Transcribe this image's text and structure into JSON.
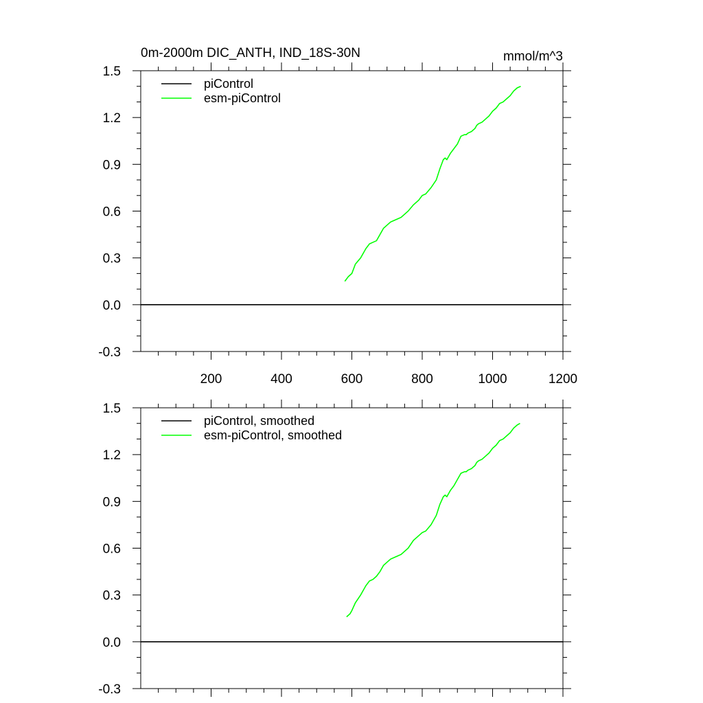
{
  "figure": {
    "title_left": "0m-2000m DIC_ANTH, IND_18S-30N",
    "title_right": "mmol/m^3"
  },
  "chart_data": [
    {
      "type": "line",
      "xlim": [
        0,
        1200
      ],
      "ylim": [
        -0.3,
        1.5
      ],
      "x_ticks": [
        200,
        400,
        600,
        800,
        1000,
        1200
      ],
      "x_tick_labels": [
        "200",
        "400",
        "600",
        "800",
        "1000",
        "1200"
      ],
      "y_ticks": [
        -0.3,
        0.0,
        0.3,
        0.6,
        0.9,
        1.2,
        1.5
      ],
      "y_tick_labels": [
        "-0.3",
        "0.0",
        "0.3",
        "0.6",
        "0.9",
        "1.2",
        "1.5"
      ],
      "legend_position": "top-left",
      "grid": false,
      "series": [
        {
          "name": "piControl",
          "color": "#000000",
          "x": [
            0,
            1200
          ],
          "y": [
            0.0,
            0.0
          ]
        },
        {
          "name": "esm-piControl",
          "color": "#00ff00",
          "x": [
            580,
            590,
            600,
            610,
            625,
            640,
            650,
            660,
            670,
            680,
            690,
            700,
            710,
            720,
            730,
            740,
            760,
            775,
            790,
            800,
            810,
            825,
            840,
            850,
            860,
            865,
            870,
            880,
            890,
            900,
            910,
            920,
            925,
            930,
            940,
            950,
            955,
            960,
            970,
            980,
            990,
            1000,
            1010,
            1020,
            1030,
            1040,
            1050,
            1060,
            1070,
            1080
          ],
          "y": [
            0.15,
            0.18,
            0.2,
            0.26,
            0.3,
            0.36,
            0.39,
            0.4,
            0.41,
            0.45,
            0.49,
            0.51,
            0.53,
            0.54,
            0.55,
            0.56,
            0.6,
            0.64,
            0.67,
            0.7,
            0.71,
            0.75,
            0.8,
            0.87,
            0.93,
            0.94,
            0.93,
            0.97,
            1.0,
            1.03,
            1.08,
            1.09,
            1.09,
            1.1,
            1.11,
            1.13,
            1.15,
            1.16,
            1.17,
            1.19,
            1.21,
            1.24,
            1.26,
            1.29,
            1.3,
            1.32,
            1.34,
            1.37,
            1.39,
            1.4
          ]
        }
      ]
    },
    {
      "type": "line",
      "xlim": [
        0,
        1200
      ],
      "ylim": [
        -0.3,
        1.5
      ],
      "x_ticks": [
        200,
        400,
        600,
        800,
        1000,
        1200
      ],
      "y_ticks": [
        -0.3,
        0.0,
        0.3,
        0.6,
        0.9,
        1.2,
        1.5
      ],
      "y_tick_labels": [
        "-0.3",
        "0.0",
        "0.3",
        "0.6",
        "0.9",
        "1.2",
        "1.5"
      ],
      "legend_position": "top-left",
      "grid": false,
      "series": [
        {
          "name": "piControl, smoothed",
          "color": "#000000",
          "x": [
            0,
            1200
          ],
          "y": [
            0.0,
            0.0
          ]
        },
        {
          "name": "esm-piControl, smoothed",
          "color": "#00ff00",
          "x": [
            585,
            595,
            600,
            610,
            625,
            640,
            650,
            660,
            670,
            680,
            690,
            700,
            710,
            720,
            730,
            740,
            760,
            775,
            790,
            800,
            810,
            825,
            840,
            850,
            860,
            865,
            870,
            880,
            890,
            900,
            910,
            920,
            925,
            930,
            940,
            950,
            955,
            960,
            970,
            980,
            990,
            1000,
            1010,
            1020,
            1030,
            1040,
            1050,
            1060,
            1070,
            1078
          ],
          "y": [
            0.16,
            0.18,
            0.2,
            0.25,
            0.3,
            0.36,
            0.39,
            0.4,
            0.42,
            0.45,
            0.49,
            0.51,
            0.53,
            0.54,
            0.55,
            0.56,
            0.6,
            0.65,
            0.68,
            0.7,
            0.71,
            0.75,
            0.81,
            0.88,
            0.93,
            0.94,
            0.93,
            0.97,
            1.0,
            1.04,
            1.08,
            1.09,
            1.09,
            1.1,
            1.11,
            1.13,
            1.15,
            1.16,
            1.17,
            1.19,
            1.21,
            1.24,
            1.26,
            1.29,
            1.3,
            1.32,
            1.34,
            1.37,
            1.39,
            1.4
          ]
        }
      ]
    }
  ]
}
